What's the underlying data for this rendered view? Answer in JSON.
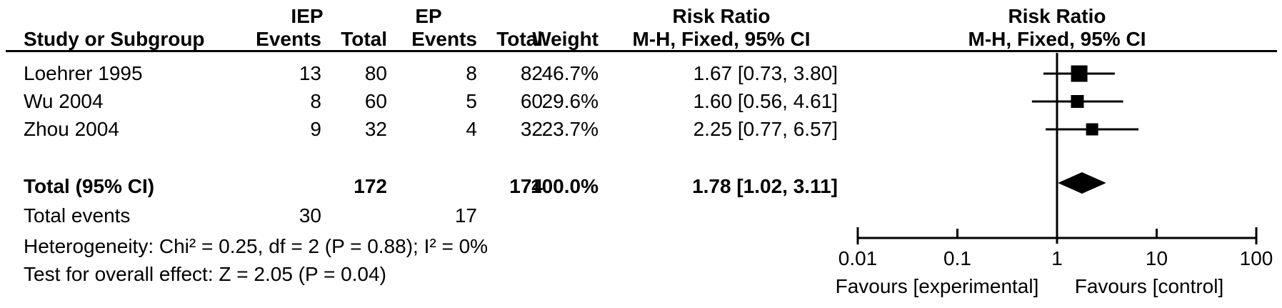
{
  "table": {
    "header": {
      "group1": "IEP",
      "group2": "EP",
      "risk_ratio_1": "Risk Ratio",
      "risk_ratio_2": "Risk Ratio",
      "study": "Study or Subgroup",
      "events1": "Events",
      "total1": "Total",
      "events2": "Events",
      "total2": "Total",
      "weight": "Weight",
      "mh_1": "M-H, Fixed, 95% CI",
      "mh_2": "M-H, Fixed, 95% CI"
    },
    "rows": [
      {
        "study": "Loehrer 1995",
        "e1": "13",
        "t1": "80",
        "e2": "8",
        "t2": "82",
        "weight": "46.7%",
        "rr_text": "1.67 [0.73, 3.80]"
      },
      {
        "study": "Wu 2004",
        "e1": "8",
        "t1": "60",
        "e2": "5",
        "t2": "60",
        "weight": "29.6%",
        "rr_text": "1.60 [0.56, 4.61]"
      },
      {
        "study": "Zhou 2004",
        "e1": "9",
        "t1": "32",
        "e2": "4",
        "t2": "32",
        "weight": "23.7%",
        "rr_text": "2.25 [0.77, 6.57]"
      }
    ],
    "total_row": {
      "label": "Total (95% CI)",
      "t1": "172",
      "t2": "174",
      "weight": "100.0%",
      "rr_text": "1.78 [1.02, 3.11]"
    },
    "total_events": {
      "label": "Total events",
      "e1": "30",
      "e2": "17"
    },
    "heterogeneity": "Heterogeneity: Chi² = 0.25, df = 2 (P = 0.88); I² = 0%",
    "overall_effect": "Test for overall effect: Z = 2.05 (P = 0.04)"
  },
  "chart_data": {
    "type": "forest",
    "effect_measure": "Risk Ratio",
    "method": "M-H, Fixed, 95% CI",
    "x_scale": "log10",
    "xlim": [
      0.01,
      100
    ],
    "x_ticks": [
      0.01,
      0.1,
      1,
      10,
      100
    ],
    "x_tick_labels": [
      "0.01",
      "0.1",
      "1",
      "10",
      "100"
    ],
    "null_line": 1,
    "studies": [
      {
        "name": "Loehrer 1995",
        "rr": 1.67,
        "ci_low": 0.73,
        "ci_high": 3.8,
        "weight_pct": 46.7
      },
      {
        "name": "Wu 2004",
        "rr": 1.6,
        "ci_low": 0.56,
        "ci_high": 4.61,
        "weight_pct": 29.6
      },
      {
        "name": "Zhou 2004",
        "rr": 2.25,
        "ci_low": 0.77,
        "ci_high": 6.57,
        "weight_pct": 23.7
      }
    ],
    "total": {
      "rr": 1.78,
      "ci_low": 1.02,
      "ci_high": 3.11,
      "weight_pct": 100.0
    },
    "favours_left": "Favours [experimental]",
    "favours_right": "Favours [control]",
    "marker_color": "#000000",
    "background_color": "#ffffff"
  }
}
